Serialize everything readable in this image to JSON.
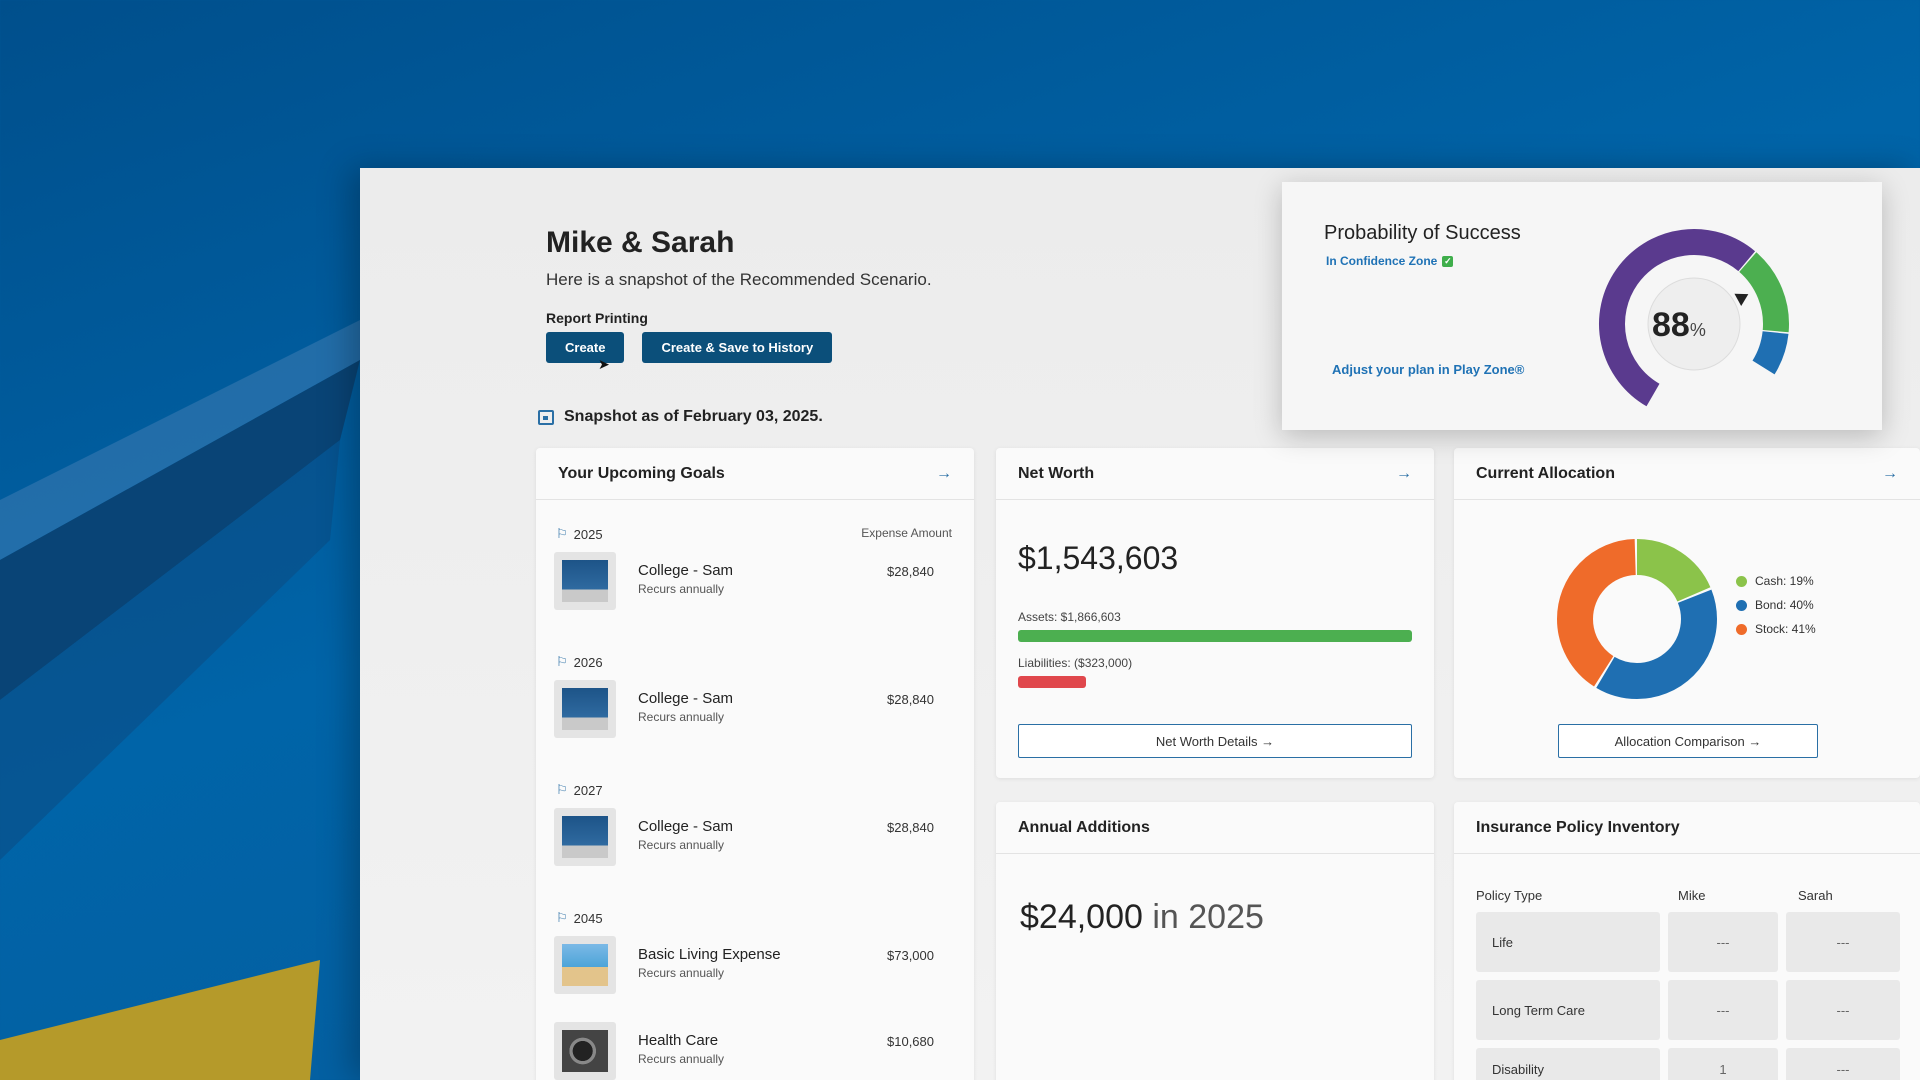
{
  "header": {
    "title": "Mike & Sarah",
    "subtitle": "Here is a snapshot of the Recommended Scenario.",
    "report_label": "Report Printing",
    "create_label": "Create",
    "create_save_label": "Create & Save to History"
  },
  "snapshot": {
    "text": "Snapshot as of February 03, 2025."
  },
  "probability": {
    "title": "Probability of Success",
    "zone": "In Confidence Zone",
    "link": "Adjust your plan in Play Zone®",
    "value": "88",
    "unit": "%",
    "percent": 88
  },
  "goals": {
    "title": "Your Upcoming Goals",
    "expense_header": "Expense Amount",
    "groups": [
      {
        "year": "2025",
        "items": [
          {
            "name": "College - Sam",
            "recurrence": "Recurs annually",
            "amount": "$28,840"
          }
        ]
      },
      {
        "year": "2026",
        "items": [
          {
            "name": "College - Sam",
            "recurrence": "Recurs annually",
            "amount": "$28,840"
          }
        ]
      },
      {
        "year": "2027",
        "items": [
          {
            "name": "College - Sam",
            "recurrence": "Recurs annually",
            "amount": "$28,840"
          }
        ]
      },
      {
        "year": "2045",
        "items": [
          {
            "name": "Basic Living Expense",
            "recurrence": "Recurs annually",
            "amount": "$73,000"
          },
          {
            "name": "Health Care",
            "recurrence": "Recurs annually",
            "amount": "$10,680"
          }
        ]
      }
    ]
  },
  "net_worth": {
    "title": "Net Worth",
    "value": "$1,543,603",
    "assets_label": "Assets: $1,866,603",
    "liabilities_label": "Liabilities: ($323,000)",
    "assets_fraction": 1.0,
    "liabilities_fraction": 0.173,
    "button": "Net Worth Details",
    "colors": {
      "assets": "#4caf50",
      "liabilities": "#e0474c"
    }
  },
  "allocation": {
    "title": "Current Allocation",
    "button": "Allocation Comparison",
    "slices": [
      {
        "label": "Cash: 19%",
        "percent": 19,
        "color": "#8bc34a"
      },
      {
        "label": "Bond: 40%",
        "percent": 40,
        "color": "#1f6fb2"
      },
      {
        "label": "Stock: 41%",
        "percent": 41,
        "color": "#ef6b2a"
      }
    ]
  },
  "additions": {
    "title": "Annual Additions",
    "value": "$24,000",
    "suffix": "in 2025"
  },
  "insurance": {
    "title": "Insurance Policy Inventory",
    "headers": [
      "Policy Type",
      "Mike",
      "Sarah"
    ],
    "rows": [
      {
        "type": "Life",
        "mike": "---",
        "sarah": "---"
      },
      {
        "type": "Long Term Care",
        "mike": "---",
        "sarah": "---"
      },
      {
        "type": "Disability",
        "mike": "1",
        "sarah": "---"
      }
    ]
  }
}
